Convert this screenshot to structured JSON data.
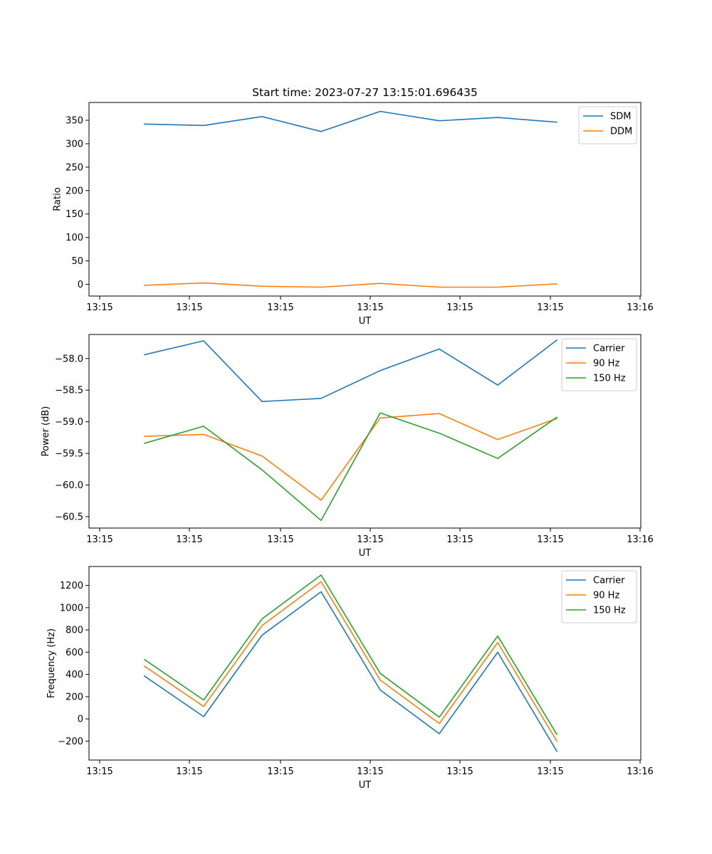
{
  "chart_data": [
    {
      "type": "line",
      "title": "Start time: 2023-07-27 13:15:01.696435",
      "xlabel": "UT",
      "ylabel": "Ratio",
      "x_tick_labels": [
        "13:15",
        "13:15",
        "13:15",
        "13:15",
        "13:15",
        "13:15",
        "13:16"
      ],
      "ylim": [
        -25,
        388
      ],
      "yticks": [
        0,
        50,
        100,
        150,
        200,
        250,
        300,
        350
      ],
      "ytick_labels": [
        "0",
        "50",
        "100",
        "150",
        "200",
        "250",
        "300",
        "350"
      ],
      "legend_position": "top-right",
      "series": [
        {
          "name": "SDM",
          "color": "#1f77b4",
          "values": [
            342,
            339,
            358,
            326,
            369,
            349,
            356,
            346
          ]
        },
        {
          "name": "DDM",
          "color": "#ff7f0e",
          "values": [
            -2,
            3,
            -4,
            -6,
            2,
            -6,
            -6,
            1
          ]
        }
      ]
    },
    {
      "type": "line",
      "title": "",
      "xlabel": "UT",
      "ylabel": "Power (dB)",
      "x_tick_labels": [
        "13:15",
        "13:15",
        "13:15",
        "13:15",
        "13:15",
        "13:15",
        "13:16"
      ],
      "ylim": [
        -60.68,
        -57.62
      ],
      "yticks": [
        -60.5,
        -60.0,
        -59.5,
        -59.0,
        -58.5,
        -58.0
      ],
      "ytick_labels": [
        "−60.5",
        "−60.0",
        "−59.5",
        "−59.0",
        "−58.5",
        "−58.0"
      ],
      "legend_position": "top-right",
      "series": [
        {
          "name": "Carrier",
          "color": "#1f77b4",
          "values": [
            -57.94,
            -57.72,
            -58.68,
            -58.63,
            -58.19,
            -57.85,
            -58.42,
            -57.71
          ]
        },
        {
          "name": "90 Hz",
          "color": "#ff7f0e",
          "values": [
            -59.23,
            -59.2,
            -59.54,
            -60.24,
            -58.94,
            -58.87,
            -59.28,
            -58.95
          ]
        },
        {
          "name": "150 Hz",
          "color": "#2ca02c",
          "values": [
            -59.34,
            -59.07,
            -59.76,
            -60.56,
            -58.86,
            -59.18,
            -59.58,
            -58.93
          ]
        }
      ]
    },
    {
      "type": "line",
      "title": "",
      "xlabel": "UT",
      "ylabel": "Frequency (Hz)",
      "x_tick_labels": [
        "13:15",
        "13:15",
        "13:15",
        "13:15",
        "13:15",
        "13:15",
        "13:16"
      ],
      "ylim": [
        -370,
        1370
      ],
      "yticks": [
        -200,
        0,
        200,
        400,
        600,
        800,
        1000,
        1200
      ],
      "ytick_labels": [
        "−200",
        "0",
        "200",
        "400",
        "600",
        "800",
        "1000",
        "1200"
      ],
      "legend_position": "top-right",
      "series": [
        {
          "name": "Carrier",
          "color": "#1f77b4",
          "values": [
            385,
            20,
            752,
            1143,
            260,
            -133,
            599,
            -290
          ]
        },
        {
          "name": "90 Hz",
          "color": "#ff7f0e",
          "values": [
            473,
            112,
            839,
            1233,
            349,
            -41,
            686,
            -199
          ]
        },
        {
          "name": "150 Hz",
          "color": "#2ca02c",
          "values": [
            533,
            170,
            899,
            1293,
            409,
            16,
            745,
            -140
          ]
        }
      ]
    }
  ]
}
